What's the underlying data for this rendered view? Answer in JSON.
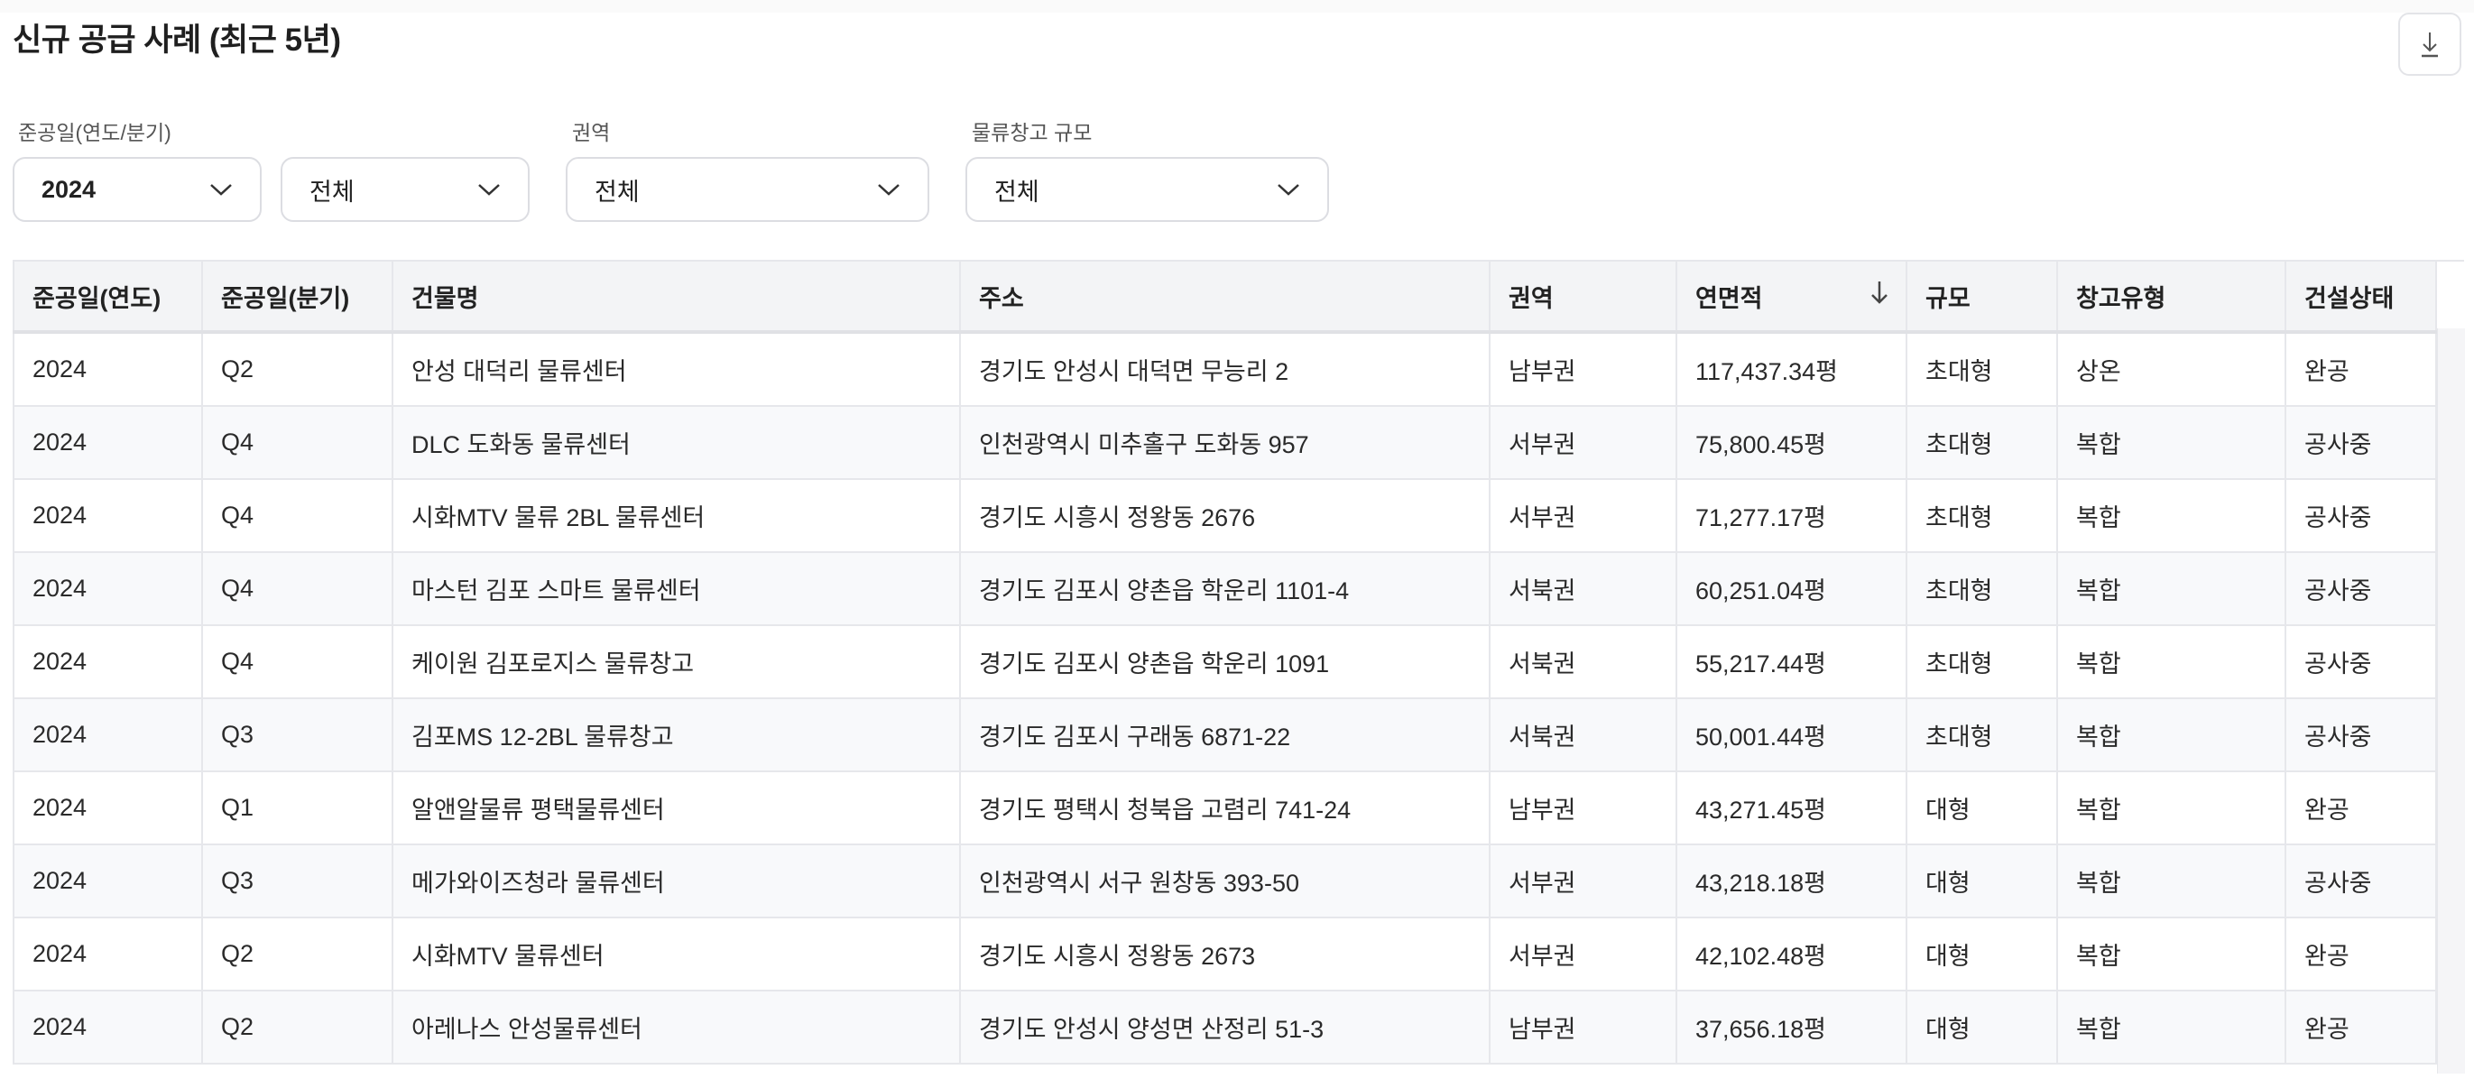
{
  "header": {
    "title": "신규 공급 사례 (최근 5년)",
    "download_icon": "download-icon"
  },
  "filters": {
    "completion_label": "준공일(연도/분기)",
    "year_value": "2024",
    "quarter_value": "전체",
    "region_label": "권역",
    "region_value": "전체",
    "scale_label": "물류창고 규모",
    "scale_value": "전체"
  },
  "table": {
    "columns": [
      "준공일(연도)",
      "준공일(분기)",
      "건물명",
      "주소",
      "권역",
      "연면적",
      "규모",
      "창고유형",
      "건설상태"
    ],
    "sort_column": "연면적",
    "sort_direction": "desc",
    "rows": [
      [
        "2024",
        "Q2",
        "안성 대덕리 물류센터",
        "경기도 안성시 대덕면 무능리 2",
        "남부권",
        "117,437.34평",
        "초대형",
        "상온",
        "완공"
      ],
      [
        "2024",
        "Q4",
        "DLC 도화동 물류센터",
        "인천광역시 미추홀구 도화동 957",
        "서부권",
        "75,800.45평",
        "초대형",
        "복합",
        "공사중"
      ],
      [
        "2024",
        "Q4",
        "시화MTV 물류 2BL 물류센터",
        "경기도 시흥시 정왕동 2676",
        "서부권",
        "71,277.17평",
        "초대형",
        "복합",
        "공사중"
      ],
      [
        "2024",
        "Q4",
        "마스턴 김포 스마트 물류센터",
        "경기도 김포시 양촌읍 학운리 1101-4",
        "서북권",
        "60,251.04평",
        "초대형",
        "복합",
        "공사중"
      ],
      [
        "2024",
        "Q4",
        "케이원 김포로지스 물류창고",
        "경기도 김포시 양촌읍 학운리 1091",
        "서북권",
        "55,217.44평",
        "초대형",
        "복합",
        "공사중"
      ],
      [
        "2024",
        "Q3",
        "김포MS 12-2BL 물류창고",
        "경기도 김포시 구래동 6871-22",
        "서북권",
        "50,001.44평",
        "초대형",
        "복합",
        "공사중"
      ],
      [
        "2024",
        "Q1",
        "알앤알물류 평택물류센터",
        "경기도 평택시 청북읍 고렴리 741-24",
        "남부권",
        "43,271.45평",
        "대형",
        "복합",
        "완공"
      ],
      [
        "2024",
        "Q3",
        "메가와이즈청라 물류센터",
        "인천광역시 서구 원창동 393-50",
        "서부권",
        "43,218.18평",
        "대형",
        "복합",
        "공사중"
      ],
      [
        "2024",
        "Q2",
        "시화MTV 물류센터",
        "경기도 시흥시 정왕동 2673",
        "서부권",
        "42,102.48평",
        "대형",
        "복합",
        "완공"
      ],
      [
        "2024",
        "Q2",
        "아레나스 안성물류센터",
        "경기도 안성시 양성면 산정리 51-3",
        "남부권",
        "37,656.18평",
        "대형",
        "복합",
        "완공"
      ]
    ]
  }
}
